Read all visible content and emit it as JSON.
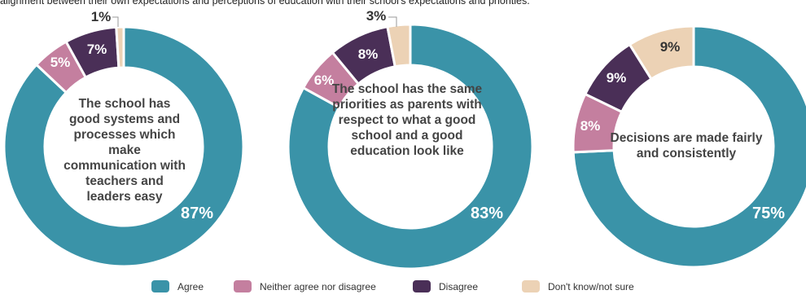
{
  "intro_text": "alignment between their own expectations and perceptions of education with their school's expectations and priorities.",
  "colors": {
    "agree": "#3a93a8",
    "neither": "#c47f9f",
    "disagree": "#4a2f57",
    "dont_know": "#ecd2b5"
  },
  "legend": [
    {
      "key": "agree",
      "label": "Agree"
    },
    {
      "key": "neither",
      "label": "Neither agree nor disagree"
    },
    {
      "key": "disagree",
      "label": "Disagree"
    },
    {
      "key": "dont_know",
      "label": "Don't know/not sure"
    }
  ],
  "chart_data": [
    {
      "type": "pie",
      "title": "The school has good systems and processes which make communication with teachers and leaders easy",
      "categories": [
        "Agree",
        "Neither agree nor disagree",
        "Disagree",
        "Don't know/not sure"
      ],
      "values": [
        87,
        5,
        7,
        1
      ],
      "labels": [
        "87%",
        "5%",
        "7%",
        "1%"
      ]
    },
    {
      "type": "pie",
      "title": "The school has the same priorities as parents with respect to what a good school and a good education look like",
      "categories": [
        "Agree",
        "Neither agree nor disagree",
        "Disagree",
        "Don't know/not sure"
      ],
      "values": [
        83,
        6,
        8,
        3
      ],
      "labels": [
        "83%",
        "6%",
        "8%",
        "3%"
      ]
    },
    {
      "type": "pie",
      "title": "Decisions are made fairly and consistently",
      "categories": [
        "Agree",
        "Neither agree nor disagree",
        "Disagree",
        "Don't know/not sure"
      ],
      "values": [
        75,
        8,
        9,
        9
      ],
      "labels": [
        "75%",
        "8%",
        "9%",
        "9%"
      ]
    }
  ]
}
